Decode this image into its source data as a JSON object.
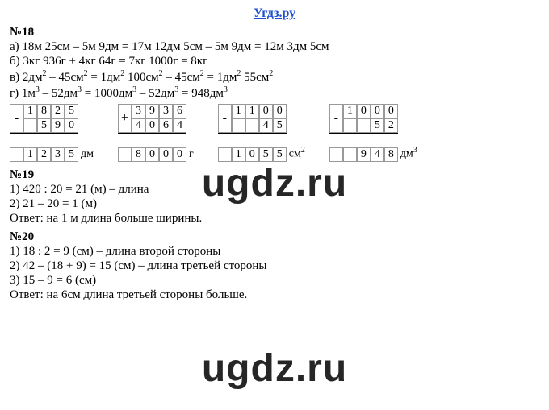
{
  "header": "Угдз.ру",
  "watermark": "ugdz.ru",
  "p18": {
    "label": "№18",
    "a": "а) 18м 25см – 5м 9дм = 17м 12дм 5см – 5м 9дм = 12м 3дм 5см",
    "b": "б) 3кг 936г + 4кг 64г = 7кг 1000г = 8кг",
    "c_before": "в) 2дм",
    "c_mid1": " – 45см",
    "c_mid2": " = 1дм",
    "c_mid3": " 100см",
    "c_mid4": " – 45см",
    "c_mid5": " = 1дм",
    "c_mid6": " 55см",
    "d_before": "г) 1м",
    "d_mid1": " – 52дм",
    "d_mid2": " = 1000дм",
    "d_mid3": " – 52дм",
    "d_mid4": " = 948дм",
    "exp2": "2",
    "exp3": "3",
    "calc1": {
      "sign": "-",
      "r1": [
        "1",
        "8",
        "2",
        "5"
      ],
      "r2": [
        "",
        "5",
        "9",
        "0"
      ],
      "r3": [
        "1",
        "2",
        "3",
        "5"
      ],
      "unit": "дм"
    },
    "calc2": {
      "sign": "+",
      "r1": [
        "3",
        "9",
        "3",
        "6"
      ],
      "r2": [
        "4",
        "0",
        "6",
        "4"
      ],
      "r3": [
        "8",
        "0",
        "0",
        "0"
      ],
      "unit": "г"
    },
    "calc3": {
      "sign": "-",
      "r1": [
        "1",
        "1",
        "0",
        "0"
      ],
      "r2": [
        "",
        "",
        "4",
        "5"
      ],
      "r3": [
        "1",
        "0",
        "5",
        "5"
      ],
      "unit_pre": "см",
      "unit_sup": "2"
    },
    "calc4": {
      "sign": "-",
      "r1": [
        "1",
        "0",
        "0",
        "0"
      ],
      "r2": [
        "",
        "",
        "5",
        "2"
      ],
      "r3": [
        "",
        "9",
        "4",
        "8"
      ],
      "unit_pre": "дм",
      "unit_sup": "3"
    }
  },
  "p19": {
    "label": "№19",
    "l1": "1) 420 : 20 = 21 (м) – длина",
    "l2": "2) 21 – 20 = 1 (м)",
    "ans": "Ответ: на 1 м длина больше ширины."
  },
  "p20": {
    "label": "№20",
    "l1": "1) 18 : 2 = 9 (см) – длина второй стороны",
    "l2": "2) 42 – (18 + 9) = 15 (см) – длина третьей стороны",
    "l3": "3) 15 – 9 = 6 (см)",
    "ans": "Ответ: на 6см длина третьей стороны больше."
  }
}
